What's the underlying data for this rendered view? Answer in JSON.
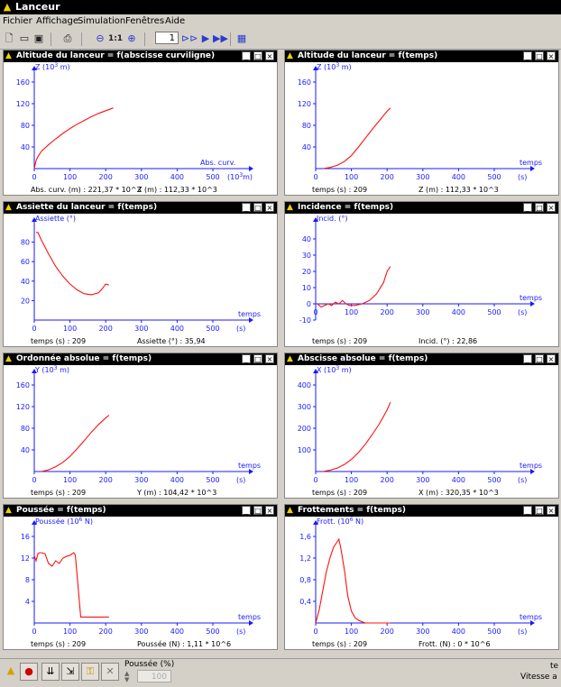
{
  "window": {
    "title": "Lanceur",
    "icon": "rocket-icon"
  },
  "menu": [
    "Fichier",
    "Affichage",
    "Simulation",
    "Fenêtres",
    "Aide"
  ],
  "toolbar": {
    "page_value": "1",
    "zoom_reset": "1:1"
  },
  "colors": {
    "axis": "#1a1aff",
    "curve": "#ff1010",
    "title_bg": "#000000"
  },
  "panels": [
    {
      "title": "Altitude du lanceur = f(abscisse curviligne)",
      "ylabel_main": "Z (10",
      "ylabel_exp": "3",
      "ylabel_tail": " m)",
      "xlabel_top": "Abs. curv.",
      "xlabel_bottom_main": "(10",
      "xlabel_bottom_exp": "3",
      "xlabel_bottom_tail": "m)",
      "yticks": [
        "40",
        "80",
        "120",
        "160"
      ],
      "xticks": [
        "0",
        "100",
        "200",
        "300",
        "400",
        "500"
      ],
      "readout_left": "Abs. curv. (m) : 221,37 * 10^3",
      "readout_right": "Z (m) : 112,33 * 10^3",
      "series": {
        "x": [
          0,
          5,
          10,
          20,
          40,
          60,
          80,
          100,
          120,
          140,
          160,
          180,
          200,
          221
        ],
        "y": [
          0,
          15,
          22,
          32,
          44,
          55,
          65,
          74,
          82,
          89,
          96,
          102,
          107,
          112
        ]
      },
      "xmax": 500,
      "ymin": 0,
      "ymax": 180
    },
    {
      "title": "Altitude du lanceur = f(temps)",
      "ylabel_main": "Z (10",
      "ylabel_exp": "3",
      "ylabel_tail": " m)",
      "xlabel_top": "temps",
      "xlabel_bottom_main": "(s)",
      "xlabel_bottom_exp": "",
      "xlabel_bottom_tail": "",
      "yticks": [
        "40",
        "80",
        "120",
        "160"
      ],
      "xticks": [
        "0",
        "100",
        "200",
        "300",
        "400",
        "500"
      ],
      "readout_left": "temps (s) : 209",
      "readout_right": "Z (m) : 112,33 * 10^3",
      "series": {
        "x": [
          20,
          40,
          60,
          80,
          100,
          120,
          140,
          160,
          180,
          200,
          209
        ],
        "y": [
          0,
          2,
          6,
          13,
          24,
          40,
          57,
          74,
          90,
          106,
          112
        ]
      },
      "xmax": 500,
      "ymin": 0,
      "ymax": 180
    },
    {
      "title": "Assiette du lanceur = f(temps)",
      "ylabel_main": "Assiette (°)",
      "ylabel_exp": "",
      "ylabel_tail": "",
      "xlabel_top": "temps",
      "xlabel_bottom_main": "(s)",
      "xlabel_bottom_exp": "",
      "xlabel_bottom_tail": "",
      "yticks": [
        "20",
        "40",
        "60",
        "80"
      ],
      "xticks": [
        "0",
        "100",
        "200",
        "300",
        "400",
        "500"
      ],
      "readout_left": "temps (s) : 209",
      "readout_right": "Assiette (°) : 35,94",
      "series": {
        "x": [
          5,
          10,
          20,
          30,
          40,
          60,
          80,
          100,
          120,
          140,
          160,
          180,
          190,
          200,
          209
        ],
        "y": [
          90,
          90,
          82,
          75,
          68,
          55,
          45,
          37,
          31,
          27,
          26,
          28,
          32,
          37,
          36
        ]
      },
      "xmax": 500,
      "ymin": 0,
      "ymax": 100
    },
    {
      "title": "Incidence = f(temps)",
      "ylabel_main": "Incid. (°)",
      "ylabel_exp": "",
      "ylabel_tail": "",
      "xlabel_top": "temps",
      "xlabel_bottom_main": "(s)",
      "xlabel_bottom_exp": "",
      "xlabel_bottom_tail": "",
      "yticks": [
        "-10",
        "0",
        "10",
        "20",
        "30",
        "40"
      ],
      "xticks": [
        "0",
        "100",
        "200",
        "300",
        "400",
        "500"
      ],
      "readout_left": "temps (s) : 209",
      "readout_right": "Incid. (°) : 22,86",
      "series": {
        "x": [
          5,
          15,
          25,
          35,
          45,
          55,
          65,
          75,
          85,
          95,
          110,
          130,
          150,
          170,
          190,
          200,
          209
        ],
        "y": [
          0,
          -2,
          -1,
          0,
          -1,
          1,
          0,
          2,
          0,
          -1,
          -1,
          0,
          2,
          6,
          13,
          20,
          23
        ]
      },
      "xmax": 500,
      "ymin": -10,
      "ymax": 50
    },
    {
      "title": "Ordonnée absolue = f(temps)",
      "ylabel_main": "Y (10",
      "ylabel_exp": "3",
      "ylabel_tail": " m)",
      "xlabel_top": "temps",
      "xlabel_bottom_main": "(s)",
      "xlabel_bottom_exp": "",
      "xlabel_bottom_tail": "",
      "yticks": [
        "40",
        "80",
        "120",
        "160"
      ],
      "xticks": [
        "0",
        "100",
        "200",
        "300",
        "400",
        "500"
      ],
      "readout_left": "temps (s) : 209",
      "readout_right": "Y (m) : 104,42 * 10^3",
      "series": {
        "x": [
          20,
          40,
          60,
          80,
          100,
          120,
          140,
          160,
          180,
          200,
          209
        ],
        "y": [
          0,
          3,
          9,
          17,
          28,
          42,
          57,
          73,
          87,
          99,
          104
        ]
      },
      "xmax": 500,
      "ymin": 0,
      "ymax": 180
    },
    {
      "title": "Abscisse absolue = f(temps)",
      "ylabel_main": "X (10",
      "ylabel_exp": "3",
      "ylabel_tail": " m)",
      "xlabel_top": "temps",
      "xlabel_bottom_main": "(s)",
      "xlabel_bottom_exp": "",
      "xlabel_bottom_tail": "",
      "yticks": [
        "100",
        "200",
        "300",
        "400"
      ],
      "xticks": [
        "0",
        "100",
        "200",
        "300",
        "400",
        "500"
      ],
      "readout_left": "temps (s) : 209",
      "readout_right": "X (m) : 320,35 * 10^3",
      "series": {
        "x": [
          20,
          40,
          60,
          80,
          100,
          120,
          140,
          160,
          180,
          200,
          209
        ],
        "y": [
          0,
          6,
          16,
          32,
          56,
          88,
          128,
          175,
          225,
          285,
          320
        ]
      },
      "xmax": 500,
      "ymin": 0,
      "ymax": 450
    },
    {
      "title": "Poussée = f(temps)",
      "ylabel_main": "Poussée (10",
      "ylabel_exp": "6",
      "ylabel_tail": " N)",
      "xlabel_top": "temps",
      "xlabel_bottom_main": "(s)",
      "xlabel_bottom_exp": "",
      "xlabel_bottom_tail": "",
      "yticks": [
        "4",
        "8",
        "12",
        "16"
      ],
      "xticks": [
        "0",
        "100",
        "200",
        "300",
        "400",
        "500"
      ],
      "readout_left": "temps (s) : 209",
      "readout_right": "Poussée (N) : 1,11 * 10^6",
      "series": {
        "x": [
          0,
          5,
          10,
          15,
          20,
          30,
          40,
          50,
          60,
          70,
          80,
          90,
          100,
          110,
          115,
          130,
          140,
          150,
          180,
          209
        ],
        "y": [
          12.5,
          11.5,
          12.8,
          13,
          13,
          12.8,
          11,
          10.5,
          11.5,
          11,
          12,
          12.3,
          12.5,
          13,
          12.6,
          1.1,
          1.1,
          1.1,
          1.1,
          1.1
        ]
      },
      "xmax": 500,
      "ymin": 0,
      "ymax": 18
    },
    {
      "title": "Frottements = f(temps)",
      "ylabel_main": "Frott. (10",
      "ylabel_exp": "6",
      "ylabel_tail": " N)",
      "xlabel_top": "temps",
      "xlabel_bottom_main": "(s)",
      "xlabel_bottom_exp": "",
      "xlabel_bottom_tail": "",
      "yticks": [
        "0,4",
        "0,8",
        "1,2",
        "1,6"
      ],
      "xticks": [
        "0",
        "100",
        "200",
        "300",
        "400",
        "500"
      ],
      "readout_left": "temps (s) : 209",
      "readout_right": "Frott. (N) : 0 * 10^6",
      "series": {
        "x": [
          0,
          10,
          20,
          30,
          40,
          50,
          60,
          65,
          70,
          80,
          90,
          100,
          110,
          120,
          130,
          140,
          209
        ],
        "y": [
          0,
          0.25,
          0.6,
          0.95,
          1.2,
          1.4,
          1.5,
          1.55,
          1.4,
          1.0,
          0.5,
          0.22,
          0.1,
          0.05,
          0.02,
          0,
          0
        ]
      },
      "xmax": 500,
      "ymin": 0,
      "ymax": 1.8
    }
  ],
  "statusbar": {
    "thrust_label": "Poussée (%)",
    "thrust_value": "100",
    "right_top": "te",
    "right_bottom": "Vitesse a"
  }
}
